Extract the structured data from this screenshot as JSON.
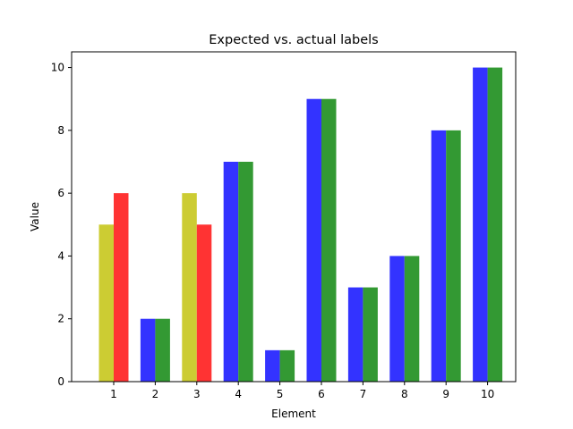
{
  "chart_data": {
    "type": "bar",
    "title": "Expected vs. actual labels",
    "xlabel": "Element",
    "ylabel": "Value",
    "ylim": [
      0,
      10.5
    ],
    "yticks": [
      0,
      2,
      4,
      6,
      8,
      10
    ],
    "categories": [
      "1",
      "2",
      "3",
      "4",
      "5",
      "6",
      "7",
      "8",
      "9",
      "10"
    ],
    "grid": false,
    "legend": "none",
    "series": [
      {
        "values": [
          5,
          2,
          6,
          7,
          1,
          9,
          3,
          4,
          8,
          10
        ],
        "colors": [
          "#cccc33",
          "#3333ff",
          "#cccc33",
          "#3333ff",
          "#3333ff",
          "#3333ff",
          "#3333ff",
          "#3333ff",
          "#3333ff",
          "#3333ff"
        ]
      },
      {
        "values": [
          6,
          2,
          5,
          7,
          1,
          9,
          3,
          4,
          8,
          10
        ],
        "colors": [
          "#ff3333",
          "#339933",
          "#ff3333",
          "#339933",
          "#339933",
          "#339933",
          "#339933",
          "#339933",
          "#339933",
          "#339933"
        ]
      }
    ]
  }
}
